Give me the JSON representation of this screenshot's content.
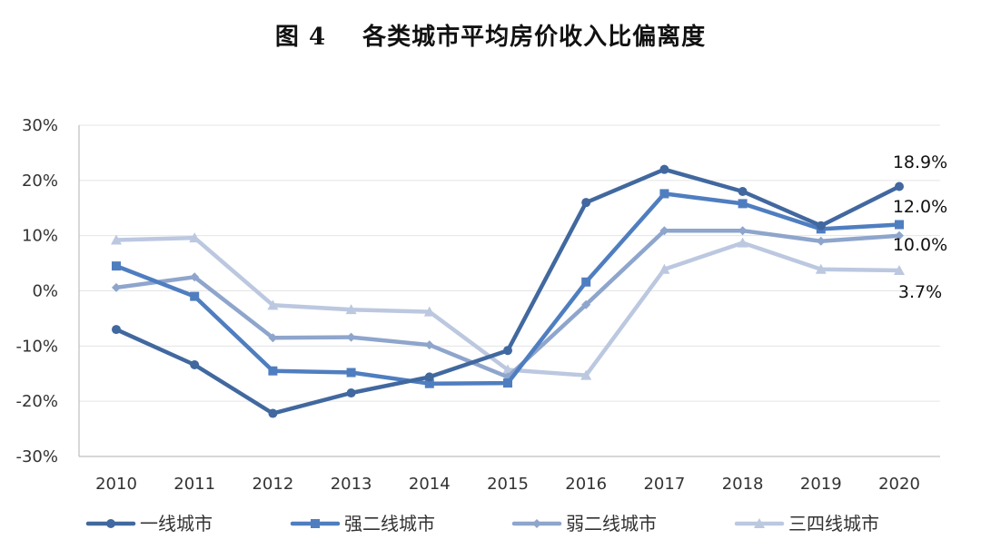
{
  "header": {
    "figure_label": "图 4",
    "title_text": "各类城市平均房价收入比偏离度"
  },
  "chart_data": {
    "type": "line",
    "title": "图 4 各类城市平均房价收入比偏离度",
    "xlabel": "",
    "ylabel": "",
    "x": [
      "2010",
      "2011",
      "2012",
      "2013",
      "2014",
      "2015",
      "2016",
      "2017",
      "2018",
      "2019",
      "2020"
    ],
    "ylim": [
      -30,
      30
    ],
    "yticks": [
      -30,
      -20,
      -10,
      0,
      10,
      20,
      30
    ],
    "ytick_labels": [
      "-30%",
      "-20%",
      "-10%",
      "0%",
      "10%",
      "20%",
      "30%"
    ],
    "grid": "horizontal",
    "legend_position": "bottom",
    "series": [
      {
        "name": "一线城市",
        "color": "#41689f",
        "marker": "circle",
        "values": [
          -7.0,
          -13.4,
          -22.2,
          -18.5,
          -15.6,
          -10.8,
          16.0,
          22.0,
          18.0,
          11.8,
          18.9
        ],
        "end_label": "18.9%"
      },
      {
        "name": "强二线城市",
        "color": "#4f7ec0",
        "marker": "square",
        "values": [
          4.5,
          -1.0,
          -14.5,
          -14.8,
          -16.8,
          -16.7,
          1.6,
          17.6,
          15.8,
          11.2,
          12.0
        ],
        "end_label": "12.0%"
      },
      {
        "name": "弱二线城市",
        "color": "#8ea5cc",
        "marker": "diamond",
        "values": [
          0.6,
          2.5,
          -8.5,
          -8.4,
          -9.8,
          -15.6,
          -2.5,
          10.9,
          10.9,
          9.0,
          10.0
        ],
        "end_label": "10.0%"
      },
      {
        "name": "三四线城市",
        "color": "#bcc8e0",
        "marker": "triangle",
        "values": [
          9.2,
          9.6,
          -2.6,
          -3.4,
          -3.8,
          -14.3,
          -15.3,
          3.9,
          8.7,
          3.9,
          3.7
        ],
        "end_label": "3.7%"
      }
    ]
  }
}
